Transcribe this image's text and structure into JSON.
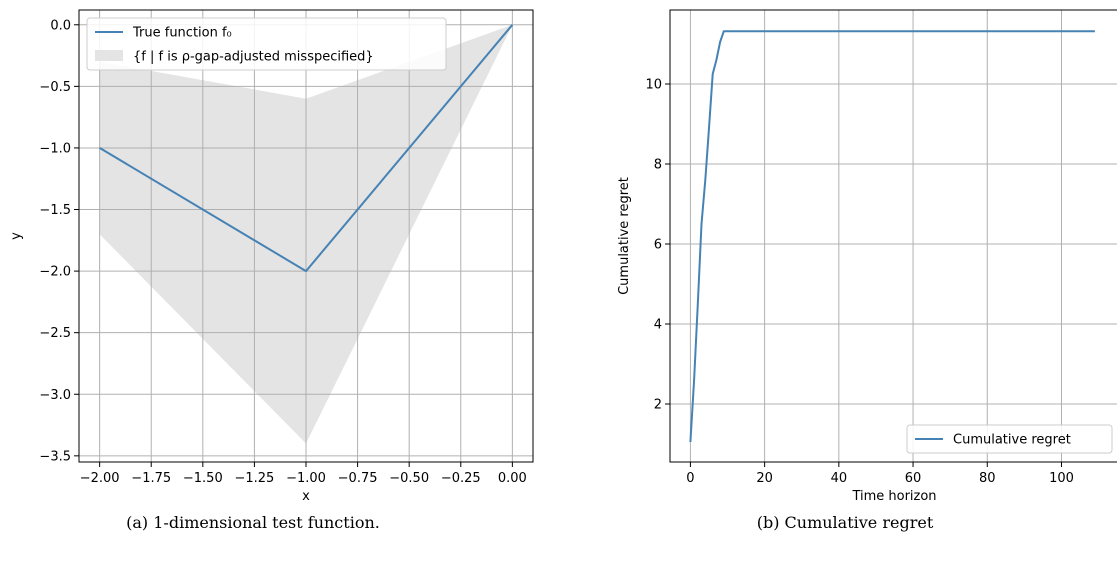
{
  "colors": {
    "line": "#4682b4",
    "band": "#e4e4e4",
    "grid": "#b0b0b0",
    "axis": "#000000"
  },
  "chart_data": [
    {
      "type": "line",
      "xlabel": "x",
      "ylabel": "y",
      "xlim": [
        -2.1,
        0.1
      ],
      "ylim": [
        -3.55,
        0.12
      ],
      "xticks": [
        -2.0,
        -1.75,
        -1.5,
        -1.25,
        -1.0,
        -0.75,
        -0.5,
        -0.25,
        0.0
      ],
      "xtick_labels": [
        "−2.00",
        "−1.75",
        "−1.50",
        "−1.25",
        "−1.00",
        "−0.75",
        "−0.50",
        "−0.25",
        "0.00"
      ],
      "yticks": [
        0.0,
        -0.5,
        -1.0,
        -1.5,
        -2.0,
        -2.5,
        -3.0,
        -3.5
      ],
      "ytick_labels": [
        "0.0",
        "−0.5",
        "−1.0",
        "−1.5",
        "−2.0",
        "−2.5",
        "−3.0",
        "−3.5"
      ],
      "grid": true,
      "legend_position": "top-left",
      "series": [
        {
          "name": "True function f₀",
          "x": [
            -2.0,
            -1.0,
            0.0
          ],
          "y": [
            -1.0,
            -2.0,
            0.0
          ]
        }
      ],
      "band": {
        "name": "{f | f is ρ-gap-adjusted misspecified}",
        "x": [
          -2.0,
          -1.0,
          0.0
        ],
        "upper": [
          -0.3,
          -0.6,
          0.0
        ],
        "lower": [
          -1.7,
          -3.4,
          0.0
        ]
      },
      "caption": "(a)  1-dimensional test function."
    },
    {
      "type": "line",
      "xlabel": "Time horizon",
      "ylabel": "Cumulative regret",
      "xlim": [
        -5.5,
        115.5
      ],
      "ylim": [
        0.55,
        11.85
      ],
      "xticks": [
        0,
        20,
        40,
        60,
        80,
        100
      ],
      "xtick_labels": [
        "0",
        "20",
        "40",
        "60",
        "80",
        "100"
      ],
      "yticks": [
        2,
        4,
        6,
        8,
        10
      ],
      "ytick_labels": [
        "2",
        "4",
        "6",
        "8",
        "10"
      ],
      "grid": true,
      "legend_position": "bottom-right",
      "series": [
        {
          "name": "Cumulative regret",
          "x": [
            0,
            1,
            2,
            3,
            4,
            5,
            6,
            7,
            8,
            9,
            10,
            20,
            40,
            60,
            80,
            100,
            109
          ],
          "y": [
            1.05,
            2.6,
            4.5,
            6.5,
            7.6,
            8.9,
            10.25,
            10.6,
            11.05,
            11.32,
            11.32,
            11.32,
            11.32,
            11.32,
            11.32,
            11.32,
            11.32
          ]
        }
      ],
      "caption": "(b)  Cumulative regret"
    }
  ]
}
